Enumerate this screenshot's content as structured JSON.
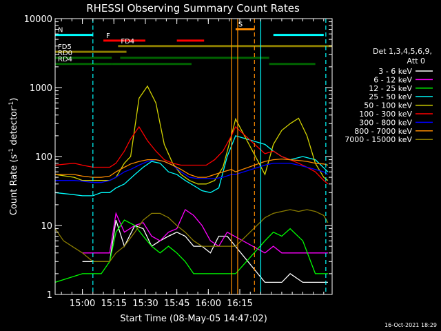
{
  "chart_data": {
    "type": "line",
    "title": "RHESSI Observing Summary Count Rates",
    "xlabel": "Start Time (08-May-05 14:47:02)",
    "ylabel_main": "Count Rate (s",
    "ylabel_sup1": "-1",
    "ylabel_mid": " detector",
    "ylabel_sup2": "-1",
    "ylabel_end": ")",
    "x_unit": "minutes after 14:47:02 UT",
    "xlim": [
      0,
      132
    ],
    "ylim": [
      1,
      10000
    ],
    "ylog": true,
    "x_ticks": [
      {
        "x": 13,
        "label": "15:00"
      },
      {
        "x": 28,
        "label": "15:15"
      },
      {
        "x": 43,
        "label": "15:30"
      },
      {
        "x": 58,
        "label": "15:45"
      },
      {
        "x": 73,
        "label": "16:00"
      },
      {
        "x": 88,
        "label": "16:15"
      }
    ],
    "y_ticks": [
      {
        "y": 1,
        "label": "1"
      },
      {
        "y": 10,
        "label": "10"
      },
      {
        "y": 100,
        "label": "100"
      },
      {
        "y": 1000,
        "label": "1000"
      },
      {
        "y": 10000,
        "label": "10000"
      }
    ],
    "footer": "16-Oct-2021 18:29",
    "legend": {
      "placement": "right",
      "header": [
        "Det 1,3,4,5,6,9,",
        "Att 0"
      ],
      "entries": [
        {
          "label": "3 - 6 keV",
          "color": "#ffffff"
        },
        {
          "label": "6 - 12 keV",
          "color": "#ff00ff"
        },
        {
          "label": "12 - 25 keV",
          "color": "#00ff00"
        },
        {
          "label": "25 - 50 keV",
          "color": "#00ffff"
        },
        {
          "label": "50 - 100 keV",
          "color": "#d2d200"
        },
        {
          "label": "100 - 300 keV",
          "color": "#ff0000"
        },
        {
          "label": "300 - 800 keV",
          "color": "#0000ff"
        },
        {
          "label": "800 - 7000 keV",
          "color": "#ff8c00"
        },
        {
          "label": "7000 - 15000 keV",
          "color": "#8b7d00"
        }
      ]
    },
    "flag_bars": [
      {
        "label": "N",
        "color": "#00ffff",
        "y": 5800,
        "segments": [
          [
            0,
            18
          ],
          [
            104,
            128
          ]
        ]
      },
      {
        "label": "S",
        "color": "#ff8c00",
        "y": 7000,
        "segments": [
          [
            86,
            95
          ]
        ]
      },
      {
        "label": "F",
        "color": "#ff0000",
        "y": 4800,
        "segments": [
          [
            23,
            43
          ],
          [
            58,
            71
          ]
        ]
      },
      {
        "label": "FD4",
        "color": "#8b7d00",
        "y": 4000,
        "segments": [
          [
            30,
            132
          ]
        ]
      },
      {
        "label": "FD5",
        "color": "#8b7d00",
        "y": 3300,
        "segments": [
          [
            0,
            34
          ]
        ]
      },
      {
        "label": "RD0",
        "color": "#006400",
        "y": 2700,
        "segments": [
          [
            0,
            27
          ],
          [
            31,
            102
          ]
        ]
      },
      {
        "label": "RD4",
        "color": "#006400",
        "y": 2200,
        "segments": [
          [
            0,
            27
          ],
          [
            27,
            65
          ],
          [
            102,
            124
          ]
        ]
      }
    ],
    "vlines": [
      {
        "x": 18,
        "color": "#00ffff",
        "dash": true
      },
      {
        "x": 84,
        "color": "#ff8c00",
        "dash": false
      },
      {
        "x": 87,
        "color": "#ff8c00",
        "dash": false
      },
      {
        "x": 95,
        "color": "#ff8c00",
        "dash": true
      },
      {
        "x": 98,
        "color": "#00ffff",
        "dash": false
      },
      {
        "x": 129,
        "color": "#00ffff",
        "dash": true
      }
    ],
    "series": [
      {
        "name": "3 - 6 keV",
        "color": "#ffffff",
        "x": [
          13,
          18,
          22,
          26,
          29,
          33,
          38,
          42,
          46,
          50,
          54,
          58,
          62,
          66,
          70,
          74,
          78,
          82,
          100,
          104,
          108,
          112,
          118,
          124,
          130
        ],
        "y": [
          3,
          3,
          3,
          3,
          12,
          5,
          10,
          9,
          5,
          6,
          7,
          8,
          7,
          5,
          5,
          4,
          7,
          7,
          1.5,
          1.5,
          1.5,
          2,
          1.5,
          1.5,
          1.5
        ]
      },
      {
        "name": "6 - 12 keV",
        "color": "#ff00ff",
        "x": [
          13,
          18,
          22,
          26,
          29,
          33,
          38,
          42,
          46,
          50,
          54,
          58,
          62,
          66,
          70,
          74,
          78,
          82,
          100,
          104,
          108,
          112,
          118,
          124,
          130
        ],
        "y": [
          4,
          4,
          4,
          4,
          15,
          8,
          10,
          11,
          7,
          6,
          8,
          9,
          17,
          14,
          10,
          6,
          5,
          8,
          4,
          5,
          4,
          4,
          4,
          4,
          4
        ]
      },
      {
        "name": "12 - 25 keV",
        "color": "#00ff00",
        "x": [
          0,
          13,
          18,
          22,
          26,
          29,
          33,
          38,
          42,
          46,
          50,
          54,
          58,
          62,
          66,
          70,
          74,
          78,
          82,
          86,
          100,
          104,
          108,
          112,
          118,
          124,
          130
        ],
        "y": [
          1.5,
          2,
          2,
          2,
          3,
          8,
          12,
          10,
          7,
          5,
          4,
          5,
          4,
          3,
          2,
          2,
          2,
          2,
          2,
          2,
          6,
          8,
          7,
          9,
          6,
          2,
          2
        ]
      },
      {
        "name": "25 - 50 keV",
        "color": "#00ffff",
        "x": [
          0,
          9,
          13,
          18,
          22,
          26,
          29,
          33,
          38,
          42,
          46,
          50,
          54,
          58,
          62,
          66,
          70,
          74,
          78,
          82,
          86,
          100,
          104,
          108,
          112,
          118,
          124,
          130
        ],
        "y": [
          30,
          28,
          27,
          27,
          30,
          30,
          35,
          40,
          55,
          70,
          85,
          80,
          60,
          55,
          45,
          38,
          32,
          30,
          35,
          100,
          200,
          150,
          120,
          100,
          90,
          100,
          90,
          60
        ]
      },
      {
        "name": "50 - 100 keV",
        "color": "#d2d200",
        "x": [
          0,
          9,
          13,
          18,
          22,
          26,
          29,
          33,
          36,
          40,
          44,
          48,
          52,
          56,
          60,
          64,
          68,
          72,
          76,
          80,
          84,
          86,
          100,
          104,
          108,
          112,
          116,
          120,
          124,
          128,
          130
        ],
        "y": [
          55,
          50,
          45,
          45,
          45,
          45,
          50,
          80,
          100,
          700,
          1050,
          600,
          150,
          80,
          55,
          45,
          40,
          40,
          45,
          70,
          200,
          350,
          55,
          150,
          240,
          300,
          360,
          200,
          80,
          50,
          45
        ]
      },
      {
        "name": "100 - 300 keV",
        "color": "#ff0000",
        "x": [
          0,
          9,
          13,
          18,
          22,
          26,
          29,
          33,
          36,
          40,
          44,
          48,
          52,
          56,
          60,
          64,
          68,
          72,
          76,
          80,
          84,
          86,
          100,
          104,
          108,
          112,
          116,
          120,
          124,
          128,
          130
        ],
        "y": [
          75,
          80,
          75,
          70,
          70,
          70,
          80,
          120,
          180,
          270,
          170,
          120,
          90,
          80,
          75,
          75,
          75,
          75,
          90,
          120,
          200,
          270,
          110,
          120,
          100,
          90,
          80,
          70,
          60,
          45,
          40
        ]
      },
      {
        "name": "300 - 800 keV",
        "color": "#0000ff",
        "x": [
          0,
          9,
          13,
          18,
          22,
          26,
          29,
          33,
          36,
          40,
          44,
          48,
          52,
          56,
          60,
          64,
          68,
          72,
          76,
          80,
          84,
          86,
          100,
          104,
          108,
          112,
          116,
          120,
          124,
          128,
          130
        ],
        "y": [
          45,
          45,
          44,
          42,
          42,
          45,
          50,
          60,
          65,
          75,
          85,
          90,
          85,
          75,
          60,
          50,
          48,
          48,
          48,
          50,
          55,
          55,
          75,
          80,
          80,
          80,
          75,
          70,
          65,
          60,
          55
        ]
      },
      {
        "name": "800 - 7000 keV",
        "color": "#ff8c00",
        "x": [
          0,
          9,
          13,
          18,
          22,
          26,
          29,
          33,
          36,
          40,
          44,
          48,
          52,
          56,
          60,
          64,
          68,
          72,
          76,
          80,
          84,
          86,
          100,
          104,
          108,
          112,
          116,
          120,
          124,
          128,
          130
        ],
        "y": [
          55,
          55,
          52,
          50,
          50,
          52,
          60,
          70,
          78,
          85,
          90,
          90,
          85,
          75,
          65,
          55,
          50,
          50,
          55,
          60,
          65,
          60,
          85,
          90,
          92,
          90,
          88,
          85,
          80,
          78,
          75
        ]
      },
      {
        "name": "7000 - 15000 keV",
        "color": "#8b7d00",
        "x": [
          0,
          4,
          8,
          13,
          18,
          22,
          26,
          29,
          33,
          38,
          42,
          46,
          50,
          54,
          58,
          62,
          66,
          70,
          74,
          78,
          82,
          86,
          100,
          104,
          108,
          112,
          116,
          120,
          124,
          128,
          130
        ],
        "y": [
          9,
          6,
          5,
          4,
          3,
          3,
          3,
          4,
          5,
          8,
          12,
          15,
          15,
          13,
          10,
          8,
          6,
          5,
          5,
          5,
          5,
          5,
          13,
          15,
          16,
          17,
          16,
          17,
          16,
          14,
          11
        ]
      }
    ]
  }
}
